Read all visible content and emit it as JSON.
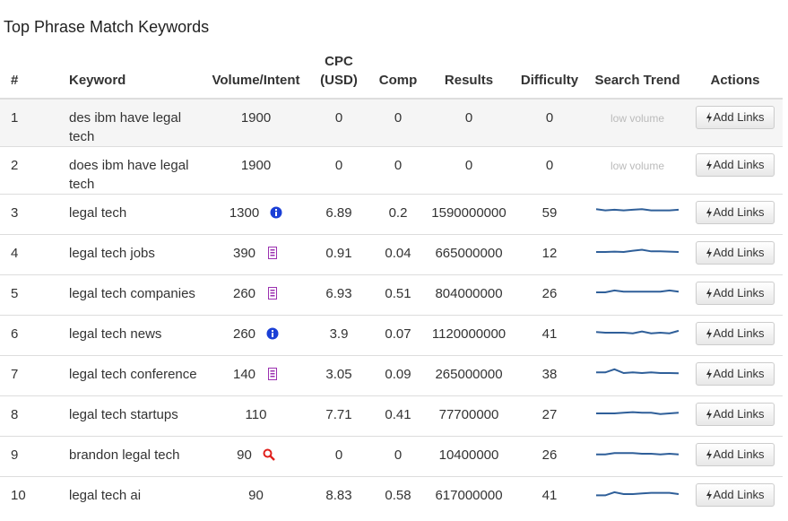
{
  "title": "Top Phrase Match Keywords",
  "table": {
    "columns": [
      "#",
      "Keyword",
      "Volume/Intent",
      "CPC (USD)",
      "Comp",
      "Results",
      "Difficulty",
      "Search Trend",
      "Actions"
    ],
    "rows": [
      {
        "num": 1,
        "keyword": "des ibm have legal tech",
        "volume": 1900,
        "cpc": 0,
        "comp": 0,
        "results": 0,
        "difficulty": 0,
        "trend_label": "low volume",
        "action": "Add Links"
      },
      {
        "num": 2,
        "keyword": "does ibm have legal tech",
        "volume": 1900,
        "cpc": 0,
        "comp": 0,
        "results": 0,
        "difficulty": 0,
        "trend_label": "low volume",
        "action": "Add Links"
      },
      {
        "num": 3,
        "keyword": "legal tech",
        "volume": 1300,
        "intent": "info",
        "cpc": 6.89,
        "comp": 0.2,
        "results": 1590000000,
        "difficulty": 59,
        "trend": [
          7,
          6,
          6.5,
          6,
          6.5,
          7,
          6,
          6,
          6,
          6.5
        ],
        "action": "Add Links"
      },
      {
        "num": 4,
        "keyword": "legal tech jobs",
        "volume": 390,
        "intent": "commercial",
        "cpc": 0.91,
        "comp": 0.04,
        "results": 665000000,
        "difficulty": 12,
        "trend": [
          5,
          5,
          5.3,
          5,
          6,
          6.8,
          5.5,
          5.5,
          5.3,
          5
        ],
        "action": "Add Links"
      },
      {
        "num": 5,
        "keyword": "legal tech companies",
        "volume": 260,
        "intent": "commercial",
        "cpc": 6.93,
        "comp": 0.51,
        "results": 804000000,
        "difficulty": 26,
        "trend": [
          5,
          5,
          6.5,
          5.5,
          5.5,
          5.5,
          5.5,
          5.5,
          6.5,
          5.5
        ],
        "action": "Add Links"
      },
      {
        "num": 6,
        "keyword": "legal tech news",
        "volume": 260,
        "intent": "info",
        "cpc": 3.9,
        "comp": 0.07,
        "results": 1120000000,
        "difficulty": 41,
        "trend": [
          5.5,
          5,
          5,
          5,
          4.5,
          6,
          4.5,
          5,
          4.5,
          6.5
        ],
        "action": "Add Links"
      },
      {
        "num": 7,
        "keyword": "legal tech conference",
        "volume": 140,
        "intent": "commercial",
        "cpc": 3.05,
        "comp": 0.09,
        "results": 265000000,
        "difficulty": 38,
        "trend": [
          5.5,
          5.5,
          8,
          5,
          5.5,
          5,
          5.5,
          5,
          5,
          4.8
        ],
        "action": "Add Links"
      },
      {
        "num": 8,
        "keyword": "legal tech startups",
        "volume": 110,
        "cpc": 7.71,
        "comp": 0.41,
        "results": 77700000,
        "difficulty": 27,
        "trend": [
          5,
          5,
          5,
          5.5,
          6,
          5.5,
          5.5,
          4.5,
          5,
          5.5
        ],
        "action": "Add Links"
      },
      {
        "num": 9,
        "keyword": "brandon legal tech",
        "volume": 90,
        "intent": "search",
        "cpc": 0,
        "comp": 0,
        "results": 10400000,
        "difficulty": 26,
        "trend": [
          4.5,
          4.5,
          5.5,
          5.5,
          5.5,
          5,
          5,
          4.5,
          5,
          4.5
        ],
        "action": "Add Links"
      },
      {
        "num": 10,
        "keyword": "legal tech ai",
        "volume": 90,
        "cpc": 8.83,
        "comp": 0.58,
        "results": 617000000,
        "difficulty": 41,
        "trend": [
          4,
          4,
          6.5,
          5,
          5,
          5.5,
          6,
          6,
          6,
          5
        ],
        "action": "Add Links"
      }
    ]
  }
}
